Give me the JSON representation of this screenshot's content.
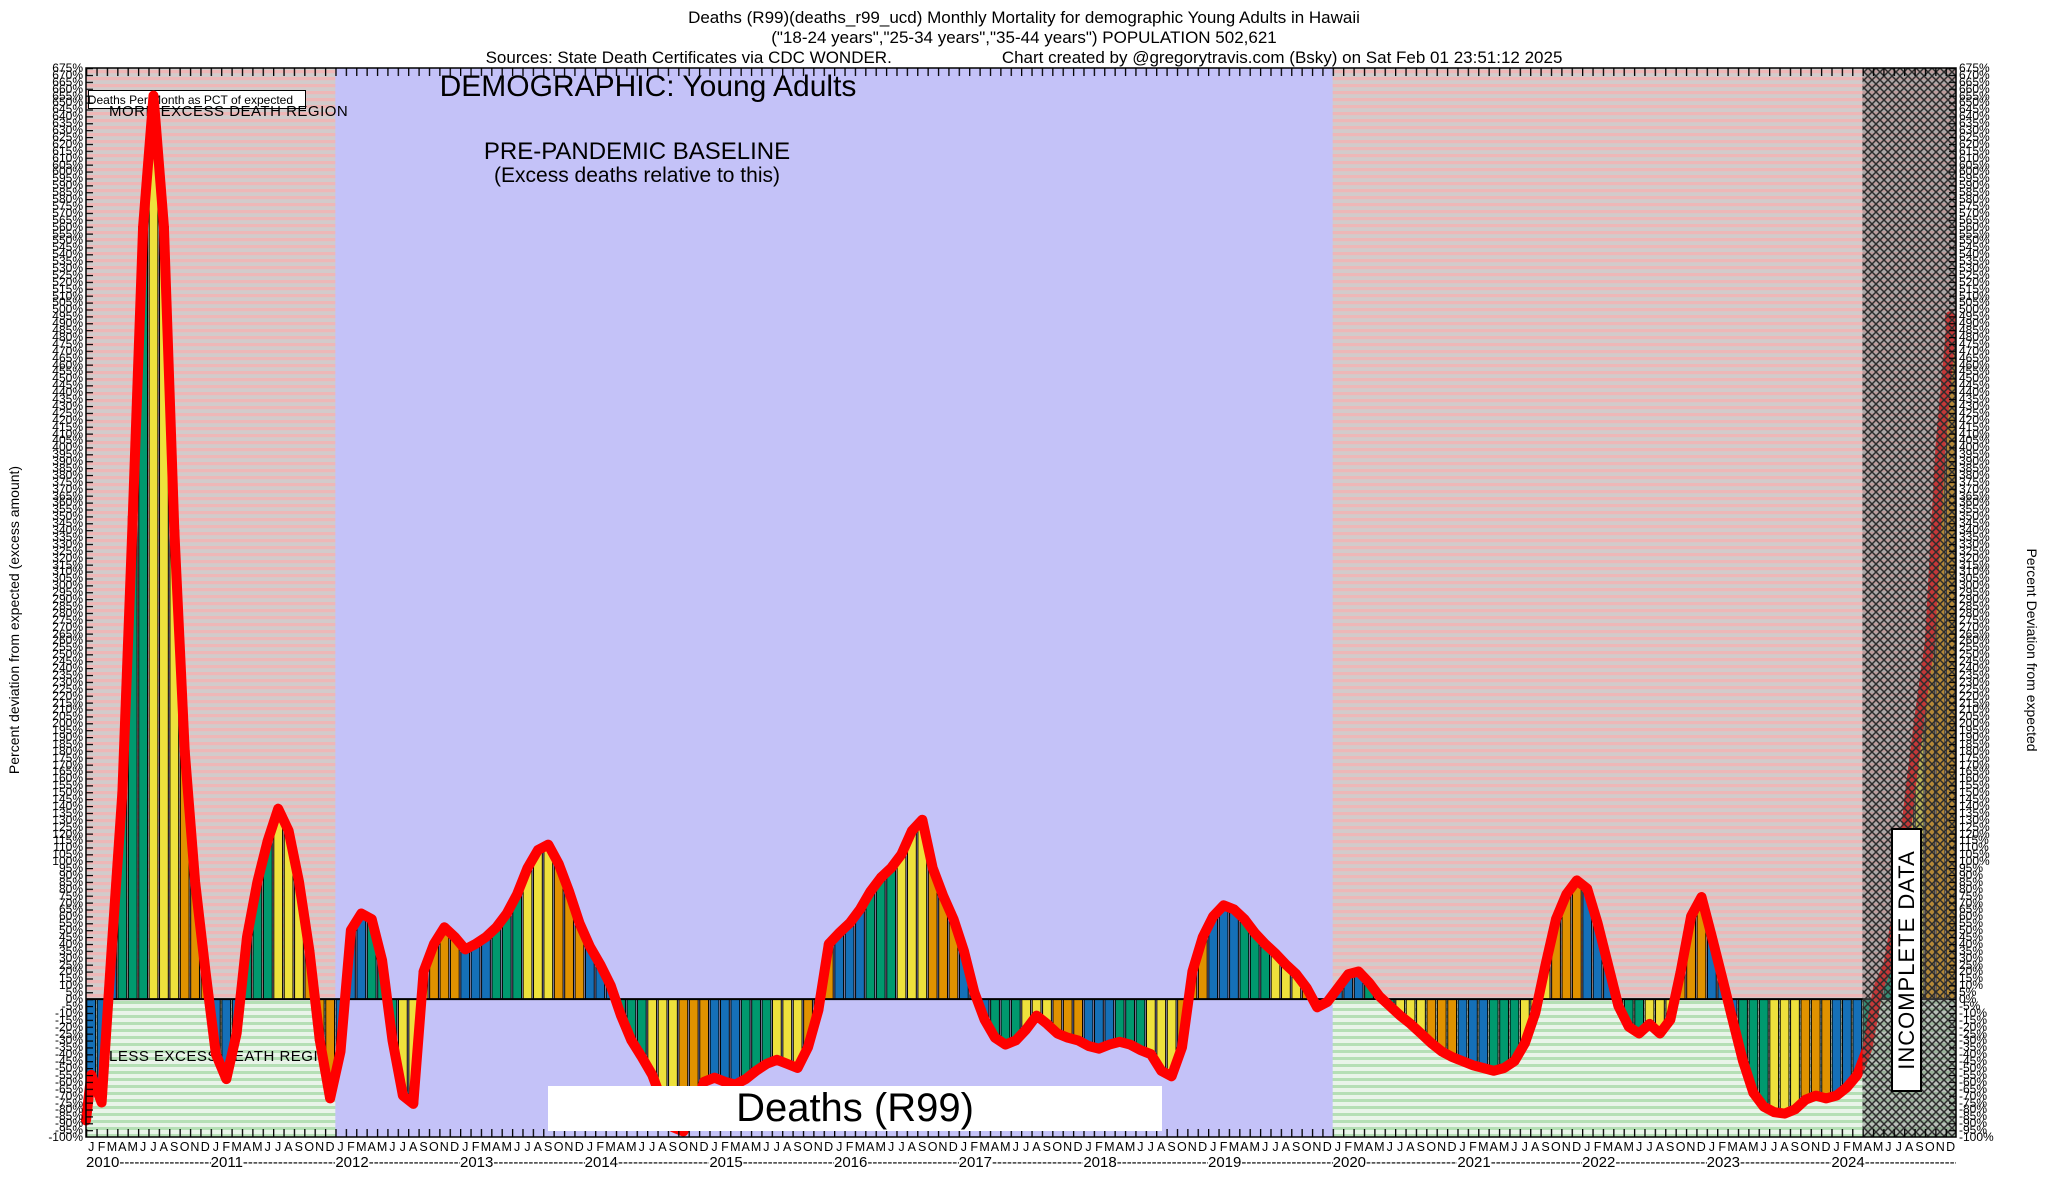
{
  "header": {
    "line1": "Deaths (R99)(deaths_r99_ucd) Monthly Mortality for demographic Young Adults in Hawaii",
    "line2": "(\"18-24 years\",\"25-34 years\",\"35-44 years\") POPULATION 502,621",
    "line3_left": "Sources: State Death Certificates via CDC WONDER.",
    "line3_right": "Chart created by @gregorytravis.com (Bsky) on Sat Feb 01 23:51:12 2025"
  },
  "labels": {
    "legend": "Deaths Per Month as PCT of expected",
    "more_region": "MORE EXCESS DEATH REGION",
    "less_region": "LESS EXCESS DEATH REGION",
    "demographic": "DEMOGRAPHIC: Young Adults",
    "baseline1": "PRE-PANDEMIC BASELINE",
    "baseline2": "(Excess deaths relative to this)",
    "deaths_box": "Deaths (R99)",
    "incomplete": "INCOMPLETE DATA",
    "left_axis_title": "Percent deviation from expected (excess amount)",
    "right_axis_title": "Percent Deviation from expected"
  },
  "chart_data": {
    "type": "bar",
    "title": "Deaths (R99) Monthly Mortality, percent deviation from expected",
    "ylabel": "Percent deviation from expected (excess amount)",
    "y_axis": {
      "min": -100,
      "max": 675,
      "step": 5,
      "unit": "%"
    },
    "x_axis": {
      "years": [
        "2010",
        "2011",
        "2012",
        "2013",
        "2014",
        "2015",
        "2016",
        "2017",
        "2018",
        "2019",
        "2020",
        "2021",
        "2022",
        "2023",
        "2024"
      ],
      "month_letters": [
        "J",
        "F",
        "M",
        "A",
        "M",
        "J",
        "J",
        "A",
        "S",
        "O",
        "N",
        "D"
      ],
      "year_dashes": "----------------------"
    },
    "series": [
      {
        "name": "Deaths Per Month as PCT of expected",
        "values": [
          -55,
          -75,
          40,
          150,
          350,
          560,
          655,
          560,
          340,
          180,
          85,
          20,
          -40,
          -58,
          -25,
          45,
          85,
          115,
          138,
          122,
          85,
          35,
          -30,
          -72,
          -38,
          50,
          62,
          58,
          28,
          -30,
          -70,
          -76,
          20,
          40,
          52,
          45,
          36,
          40,
          45,
          52,
          62,
          76,
          95,
          108,
          112,
          98,
          78,
          55,
          38,
          25,
          10,
          -12,
          -30,
          -42,
          -55,
          -75,
          -93,
          -96,
          -80,
          -60,
          -57,
          -60,
          -62,
          -58,
          -52,
          -47,
          -44,
          -47,
          -50,
          -35,
          -8,
          40,
          48,
          55,
          65,
          78,
          88,
          95,
          105,
          122,
          130,
          95,
          75,
          58,
          35,
          5,
          -15,
          -28,
          -33,
          -30,
          -22,
          -12,
          -18,
          -25,
          -28,
          -30,
          -34,
          -36,
          -33,
          -31,
          -33,
          -37,
          -40,
          -52,
          -56,
          -35,
          20,
          45,
          60,
          68,
          65,
          58,
          48,
          40,
          33,
          25,
          18,
          8,
          -6,
          -2,
          8,
          18,
          20,
          12,
          2,
          -5,
          -12,
          -18,
          -25,
          -32,
          -38,
          -42,
          -45,
          -48,
          -50,
          -52,
          -50,
          -45,
          -32,
          -10,
          25,
          58,
          76,
          86,
          80,
          55,
          25,
          -5,
          -20,
          -25,
          -18,
          -25,
          -15,
          20,
          60,
          74,
          45,
          15,
          -15,
          -45,
          -68,
          -78,
          -82,
          -83,
          -80,
          -73,
          -70,
          -72,
          -70,
          -64,
          -55,
          -35,
          8,
          25,
          70,
          145,
          205,
          260,
          400,
          485
        ]
      }
    ],
    "line_start_value": -88,
    "line_end_value": 495,
    "baseline_band_months": [
      24,
      120
    ],
    "incomplete_band_months": [
      171,
      180
    ],
    "legend_position": "top-left",
    "grid": false,
    "colors": {
      "quarter_q1_blue": "#1570b8",
      "quarter_q2_teal": "#00996e",
      "quarter_q3_yellow": "#eee13c",
      "quarter_q4_orange": "#e09200",
      "line_red": "#ff0000",
      "baseline_band_lavender": "#c4c2f8",
      "more_region_stripe": "#eeb7b7",
      "more_region_base": "#d2cbcb",
      "less_region_stripe": "#b5dfb5",
      "less_region_base": "#e9f4e9"
    }
  }
}
